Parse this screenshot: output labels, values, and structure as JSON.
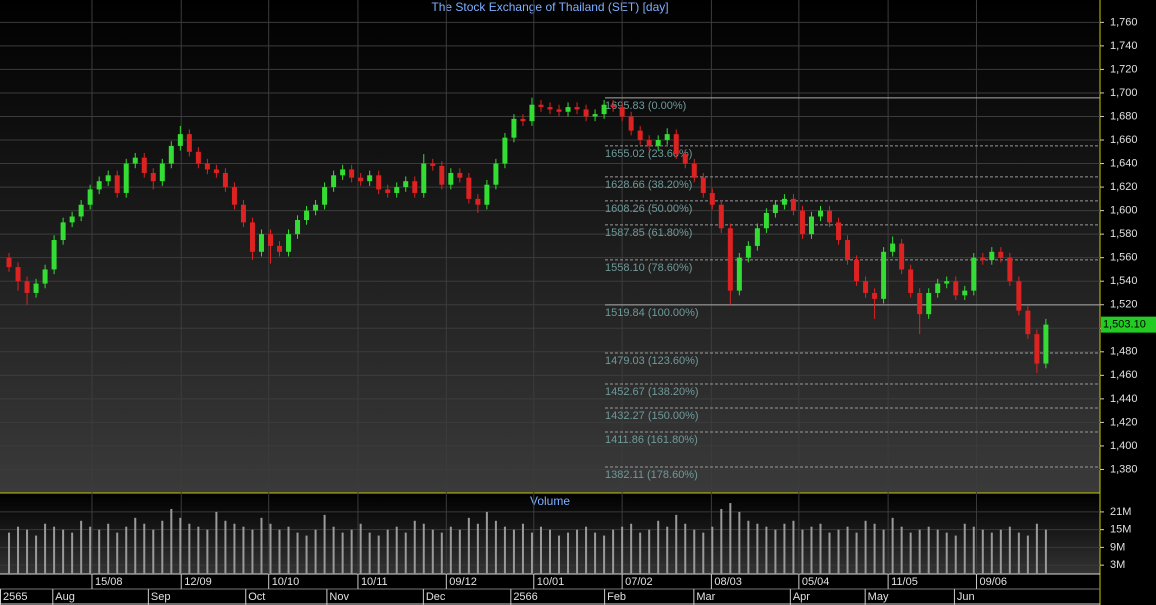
{
  "chart_data": {
    "type": "candlestick",
    "title": "The Stock Exchange of Thailand (SET) [day]",
    "volume_title": "Volume",
    "up_color": "#33dd33",
    "down_color": "#dd2222",
    "volume_color": "#9a9a9a",
    "grid": true,
    "xlim": [
      -1,
      121
    ],
    "ylim": [
      1360,
      1779
    ],
    "yticks": [
      {
        "value": 1380,
        "label": "1,380"
      },
      {
        "value": 1400,
        "label": "1,400"
      },
      {
        "value": 1420,
        "label": "1,420"
      },
      {
        "value": 1440,
        "label": "1,440"
      },
      {
        "value": 1460,
        "label": "1,460"
      },
      {
        "value": 1480,
        "label": "1,480"
      },
      {
        "value": 1500,
        "label": "1,500"
      },
      {
        "value": 1520,
        "label": "1,520"
      },
      {
        "value": 1540,
        "label": "1,540"
      },
      {
        "value": 1560,
        "label": "1,560"
      },
      {
        "value": 1580,
        "label": "1,580"
      },
      {
        "value": 1600,
        "label": "1,600"
      },
      {
        "value": 1620,
        "label": "1,620"
      },
      {
        "value": 1640,
        "label": "1,640"
      },
      {
        "value": 1660,
        "label": "1,660"
      },
      {
        "value": 1680,
        "label": "1,680"
      },
      {
        "value": 1700,
        "label": "1,700"
      },
      {
        "value": 1720,
        "label": "1,720"
      },
      {
        "value": 1740,
        "label": "1,740"
      },
      {
        "value": 1760,
        "label": "1,760"
      }
    ],
    "y2lim": [
      0,
      27.4
    ],
    "y2ticks": [
      {
        "value": 3,
        "label": "3M"
      },
      {
        "value": 9,
        "label": "9M"
      },
      {
        "value": 15,
        "label": "15M"
      },
      {
        "value": 21,
        "label": "21M"
      }
    ],
    "xticks": [
      {
        "value": 9.2,
        "label": "15/08"
      },
      {
        "value": 19.1,
        "label": "12/09"
      },
      {
        "value": 28.8,
        "label": "10/10"
      },
      {
        "value": 38.7,
        "label": "10/11"
      },
      {
        "value": 48.5,
        "label": "09/12"
      },
      {
        "value": 58.2,
        "label": "10/01"
      },
      {
        "value": 68,
        "label": "07/02"
      },
      {
        "value": 77.9,
        "label": "08/03"
      },
      {
        "value": 87.6,
        "label": "05/04"
      },
      {
        "value": 97.5,
        "label": "11/05"
      },
      {
        "value": 107.3,
        "label": "09/06"
      }
    ],
    "months": [
      {
        "value": -1,
        "label": "2565"
      },
      {
        "value": 4.8,
        "label": "Aug"
      },
      {
        "value": 15.4,
        "label": "Sep"
      },
      {
        "value": 26.2,
        "label": "Oct"
      },
      {
        "value": 35.2,
        "label": "Nov"
      },
      {
        "value": 45.9,
        "label": "Dec"
      },
      {
        "value": 55.6,
        "label": "2566"
      },
      {
        "value": 66,
        "label": "Feb"
      },
      {
        "value": 75.9,
        "label": "Mar"
      },
      {
        "value": 86.6,
        "label": "Apr"
      },
      {
        "value": 94.9,
        "label": "May"
      },
      {
        "value": 104.8,
        "label": "Jun"
      }
    ],
    "fibonacci": [
      {
        "value": 1695.83,
        "label": "1695.83 (0.00%)"
      },
      {
        "value": 1655.02,
        "label": "1655.02 (23.60%)"
      },
      {
        "value": 1628.66,
        "label": "1628.66 (38.20%)"
      },
      {
        "value": 1608.26,
        "label": "1608.26 (50.00%)"
      },
      {
        "value": 1587.85,
        "label": "1587.85 (61.80%)"
      },
      {
        "value": 1558.1,
        "label": "1558.10 (78.60%)"
      },
      {
        "value": 1519.84,
        "label": "1519.84 (100.00%)"
      },
      {
        "value": 1479.03,
        "label": "1479.03 (123.60%)"
      },
      {
        "value": 1452.67,
        "label": "1452.67 (138.20%)"
      },
      {
        "value": 1432.27,
        "label": "1432.27 (150.00%)"
      },
      {
        "value": 1411.86,
        "label": "1411.86 (161.80%)"
      },
      {
        "value": 1382.11,
        "label": "1382.11 (178.60%)"
      }
    ],
    "last_price": {
      "value": 1503.1,
      "label": "1,503.10"
    },
    "open": [
      1560,
      1552,
      1540,
      1530,
      1538,
      1550,
      1575,
      1590,
      1595,
      1605,
      1618,
      1625,
      1630,
      1615,
      1640,
      1645,
      1632,
      1625,
      1640,
      1655,
      1665,
      1650,
      1640,
      1635,
      1632,
      1620,
      1605,
      1590,
      1565,
      1580,
      1570,
      1565,
      1580,
      1592,
      1600,
      1605,
      1620,
      1630,
      1635,
      1628,
      1625,
      1630,
      1618,
      1615,
      1620,
      1625,
      1615,
      1640,
      1638,
      1622,
      1632,
      1628,
      1610,
      1605,
      1622,
      1640,
      1662,
      1678,
      1676,
      1690,
      1688,
      1686,
      1684,
      1688,
      1686,
      1680,
      1682,
      1690,
      1688,
      1680,
      1668,
      1660,
      1655,
      1660,
      1665,
      1648,
      1640,
      1628,
      1615,
      1605,
      1585,
      1532,
      1560,
      1570,
      1585,
      1598,
      1605,
      1610,
      1600,
      1580,
      1595,
      1600,
      1590,
      1575,
      1558,
      1540,
      1530,
      1525,
      1565,
      1572,
      1550,
      1530,
      1512,
      1530,
      1538,
      1540,
      1528,
      1532,
      1560,
      1558,
      1565,
      1560,
      1540,
      1515,
      1495,
      1470
    ],
    "high": [
      1564,
      1556,
      1544,
      1542,
      1554,
      1579,
      1594,
      1599,
      1609,
      1622,
      1629,
      1634,
      1634,
      1644,
      1649,
      1649,
      1636,
      1644,
      1659,
      1672,
      1669,
      1654,
      1644,
      1639,
      1636,
      1624,
      1609,
      1594,
      1584,
      1584,
      1574,
      1584,
      1596,
      1604,
      1609,
      1624,
      1634,
      1639,
      1639,
      1632,
      1634,
      1634,
      1622,
      1624,
      1629,
      1629,
      1648,
      1644,
      1642,
      1636,
      1636,
      1632,
      1614,
      1626,
      1644,
      1666,
      1682,
      1682,
      1696,
      1694,
      1692,
      1690,
      1692,
      1692,
      1690,
      1686,
      1694,
      1694,
      1692,
      1684,
      1672,
      1664,
      1664,
      1670,
      1669,
      1652,
      1644,
      1632,
      1619,
      1609,
      1589,
      1564,
      1574,
      1589,
      1602,
      1609,
      1614,
      1614,
      1604,
      1599,
      1604,
      1604,
      1594,
      1579,
      1562,
      1544,
      1534,
      1569,
      1578,
      1576,
      1554,
      1534,
      1534,
      1542,
      1544,
      1544,
      1536,
      1564,
      1564,
      1569,
      1569,
      1564,
      1544,
      1519,
      1499,
      1508
    ],
    "low": [
      1548,
      1532,
      1520,
      1526,
      1534,
      1546,
      1571,
      1586,
      1591,
      1601,
      1614,
      1621,
      1611,
      1611,
      1636,
      1628,
      1618,
      1621,
      1636,
      1651,
      1646,
      1636,
      1631,
      1628,
      1616,
      1601,
      1586,
      1558,
      1561,
      1555,
      1561,
      1561,
      1576,
      1588,
      1596,
      1601,
      1616,
      1626,
      1624,
      1621,
      1621,
      1614,
      1611,
      1611,
      1616,
      1611,
      1611,
      1634,
      1618,
      1618,
      1624,
      1606,
      1598,
      1601,
      1618,
      1636,
      1658,
      1672,
      1672,
      1684,
      1682,
      1680,
      1680,
      1682,
      1676,
      1676,
      1678,
      1684,
      1676,
      1664,
      1656,
      1651,
      1651,
      1656,
      1644,
      1636,
      1624,
      1611,
      1601,
      1581,
      1520,
      1528,
      1556,
      1566,
      1581,
      1594,
      1601,
      1596,
      1576,
      1576,
      1591,
      1586,
      1571,
      1554,
      1536,
      1526,
      1508,
      1521,
      1561,
      1546,
      1526,
      1495,
      1508,
      1526,
      1534,
      1524,
      1524,
      1528,
      1554,
      1554,
      1556,
      1536,
      1511,
      1491,
      1462,
      1466
    ],
    "close": [
      1552,
      1540,
      1530,
      1538,
      1550,
      1575,
      1590,
      1595,
      1605,
      1618,
      1625,
      1630,
      1615,
      1640,
      1645,
      1632,
      1625,
      1640,
      1655,
      1665,
      1650,
      1640,
      1635,
      1632,
      1620,
      1605,
      1590,
      1565,
      1580,
      1570,
      1565,
      1580,
      1592,
      1600,
      1605,
      1620,
      1630,
      1635,
      1628,
      1625,
      1630,
      1618,
      1615,
      1620,
      1625,
      1615,
      1640,
      1638,
      1622,
      1632,
      1628,
      1610,
      1605,
      1622,
      1640,
      1662,
      1678,
      1676,
      1690,
      1688,
      1686,
      1684,
      1688,
      1686,
      1680,
      1682,
      1690,
      1688,
      1680,
      1668,
      1660,
      1655,
      1660,
      1665,
      1648,
      1640,
      1628,
      1615,
      1605,
      1585,
      1532,
      1560,
      1570,
      1585,
      1598,
      1605,
      1610,
      1600,
      1580,
      1595,
      1600,
      1590,
      1575,
      1558,
      1540,
      1530,
      1525,
      1565,
      1572,
      1550,
      1530,
      1512,
      1530,
      1538,
      1540,
      1528,
      1532,
      1560,
      1558,
      1565,
      1560,
      1540,
      1515,
      1495,
      1470,
      1503.1
    ],
    "volume": [
      14,
      16,
      15,
      13,
      17,
      16,
      15,
      14,
      18,
      16,
      15,
      17,
      14,
      16,
      19,
      17,
      15,
      18,
      22,
      19,
      17,
      16,
      15,
      21,
      18,
      17,
      16,
      15,
      19,
      17,
      15,
      16,
      14,
      13,
      15,
      20,
      16,
      14,
      15,
      17,
      14,
      13,
      15,
      16,
      14,
      18,
      17,
      15,
      14,
      16,
      15,
      19,
      17,
      21,
      18,
      16,
      15,
      17,
      14,
      16,
      15,
      13,
      14,
      15,
      16,
      14,
      13,
      15,
      16,
      17,
      14,
      15,
      18,
      16,
      20,
      17,
      15,
      14,
      16,
      22,
      24,
      21,
      18,
      17,
      16,
      15,
      17,
      18,
      15,
      16,
      17,
      14,
      15,
      16,
      14,
      18,
      17,
      15,
      19,
      16,
      14,
      15,
      16,
      15,
      14,
      13,
      17,
      16,
      15,
      14,
      15,
      16,
      14,
      13,
      17,
      15
    ]
  }
}
